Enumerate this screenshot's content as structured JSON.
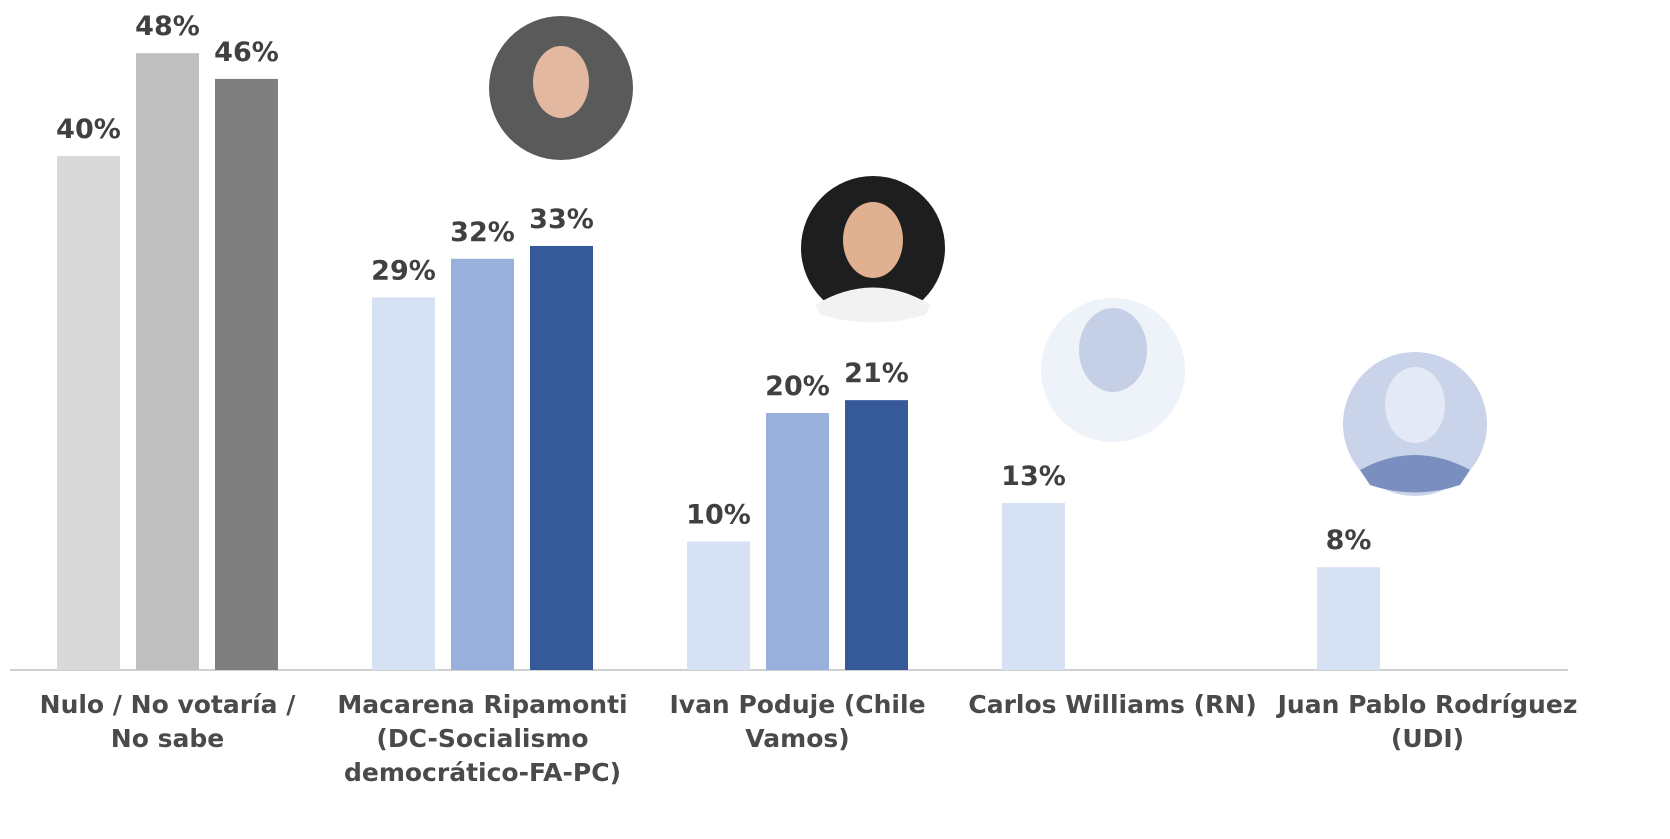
{
  "chart_data": {
    "type": "bar",
    "categories": [
      "Nulo / No votaría / No sabe",
      "Macarena Ripamonti (DC-Socialismo democrático-FA-PC)",
      "Ivan Poduje (Chile Vamos)",
      "Carlos Williams (RN)",
      "Juan Pablo Rodríguez (UDI)"
    ],
    "series": [
      {
        "values": [
          40,
          29,
          10,
          13,
          8
        ],
        "value_labels": [
          "40%",
          "29%",
          "10%",
          "13%",
          "8%"
        ],
        "colors": [
          "#d9d9d9",
          "#d6e1f4",
          "#d6e1f4",
          "#d6e1f4",
          "#d6e1f4"
        ]
      },
      {
        "values": [
          48,
          32,
          20,
          null,
          null
        ],
        "value_labels": [
          "48%",
          "32%",
          "20%",
          null,
          null
        ],
        "colors": [
          "#bfbfbf",
          "#9ab0dc",
          "#9ab0dc",
          null,
          null
        ]
      },
      {
        "values": [
          46,
          33,
          21,
          null,
          null
        ],
        "value_labels": [
          "46%",
          "33%",
          "21%",
          null,
          null
        ],
        "colors": [
          "#7f7f7f",
          "#365a99",
          "#365a99",
          null,
          null
        ]
      }
    ]
  }
}
